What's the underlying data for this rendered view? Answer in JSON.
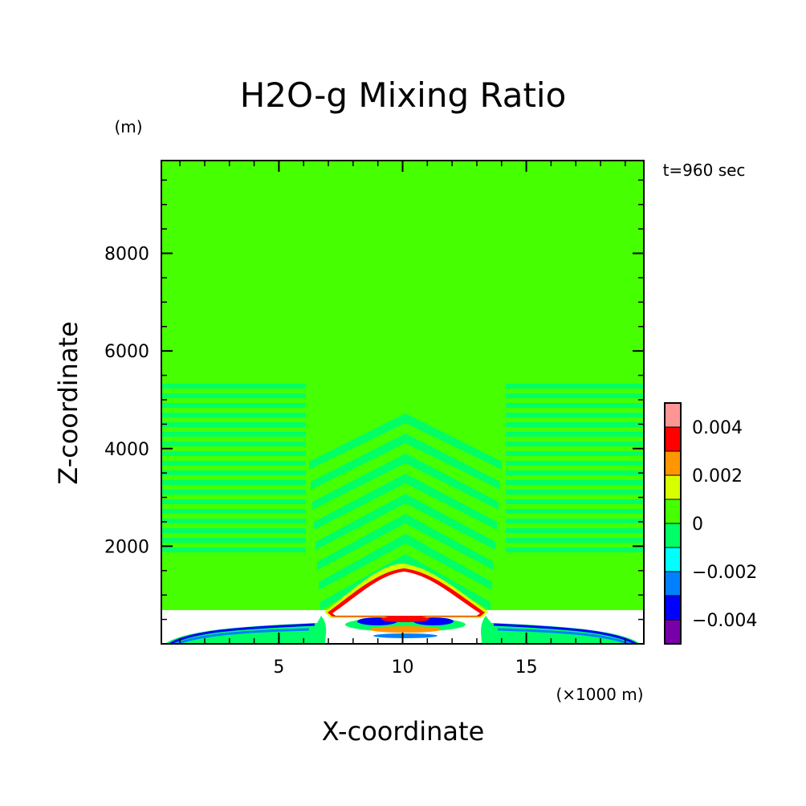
{
  "chart_data": {
    "type": "heatmap",
    "title": "H2O-g Mixing Ratio",
    "xlabel": "X-coordinate",
    "ylabel": "Z-coordinate",
    "x_unit": "(×1000 m)",
    "y_unit": "(m)",
    "time_label": "t=960 sec",
    "xlim": [
      0.25,
      19.75
    ],
    "ylim": [
      0,
      9900
    ],
    "x_ticks": [
      5,
      10,
      15
    ],
    "x_tick_labels": [
      "5",
      "10",
      "15"
    ],
    "y_ticks": [
      2000,
      4000,
      6000,
      8000
    ],
    "y_tick_labels": [
      "2000",
      "4000",
      "6000",
      "8000"
    ],
    "grid": false,
    "colorbar": {
      "placement": "right-bottom",
      "bins": [
        {
          "range": [
            -0.005,
            -0.004
          ],
          "color": "#7800a8"
        },
        {
          "range": [
            -0.004,
            -0.003
          ],
          "color": "#0000ff"
        },
        {
          "range": [
            -0.003,
            -0.002
          ],
          "color": "#0080ff"
        },
        {
          "range": [
            -0.002,
            -0.001
          ],
          "color": "#00ffff"
        },
        {
          "range": [
            -0.001,
            0.0
          ],
          "color": "#00ff64"
        },
        {
          "range": [
            0.0,
            0.001
          ],
          "color": "#46ff00"
        },
        {
          "range": [
            0.001,
            0.002
          ],
          "color": "#d7ff00"
        },
        {
          "range": [
            0.002,
            0.003
          ],
          "color": "#ff9600"
        },
        {
          "range": [
            0.003,
            0.004
          ],
          "color": "#ff0000"
        },
        {
          "range": [
            0.004,
            0.005
          ],
          "color": "#ff9696"
        }
      ],
      "tick_values": [
        0.004,
        0.002,
        0,
        -0.002,
        -0.004
      ],
      "tick_labels": [
        "0.004",
        "0.002",
        "0",
        "−0.002",
        "−0.004"
      ]
    },
    "field_description": {
      "background_value": 0.0005,
      "background_color": "#46ff00",
      "banded_region_color": "#00ff64"
    }
  }
}
